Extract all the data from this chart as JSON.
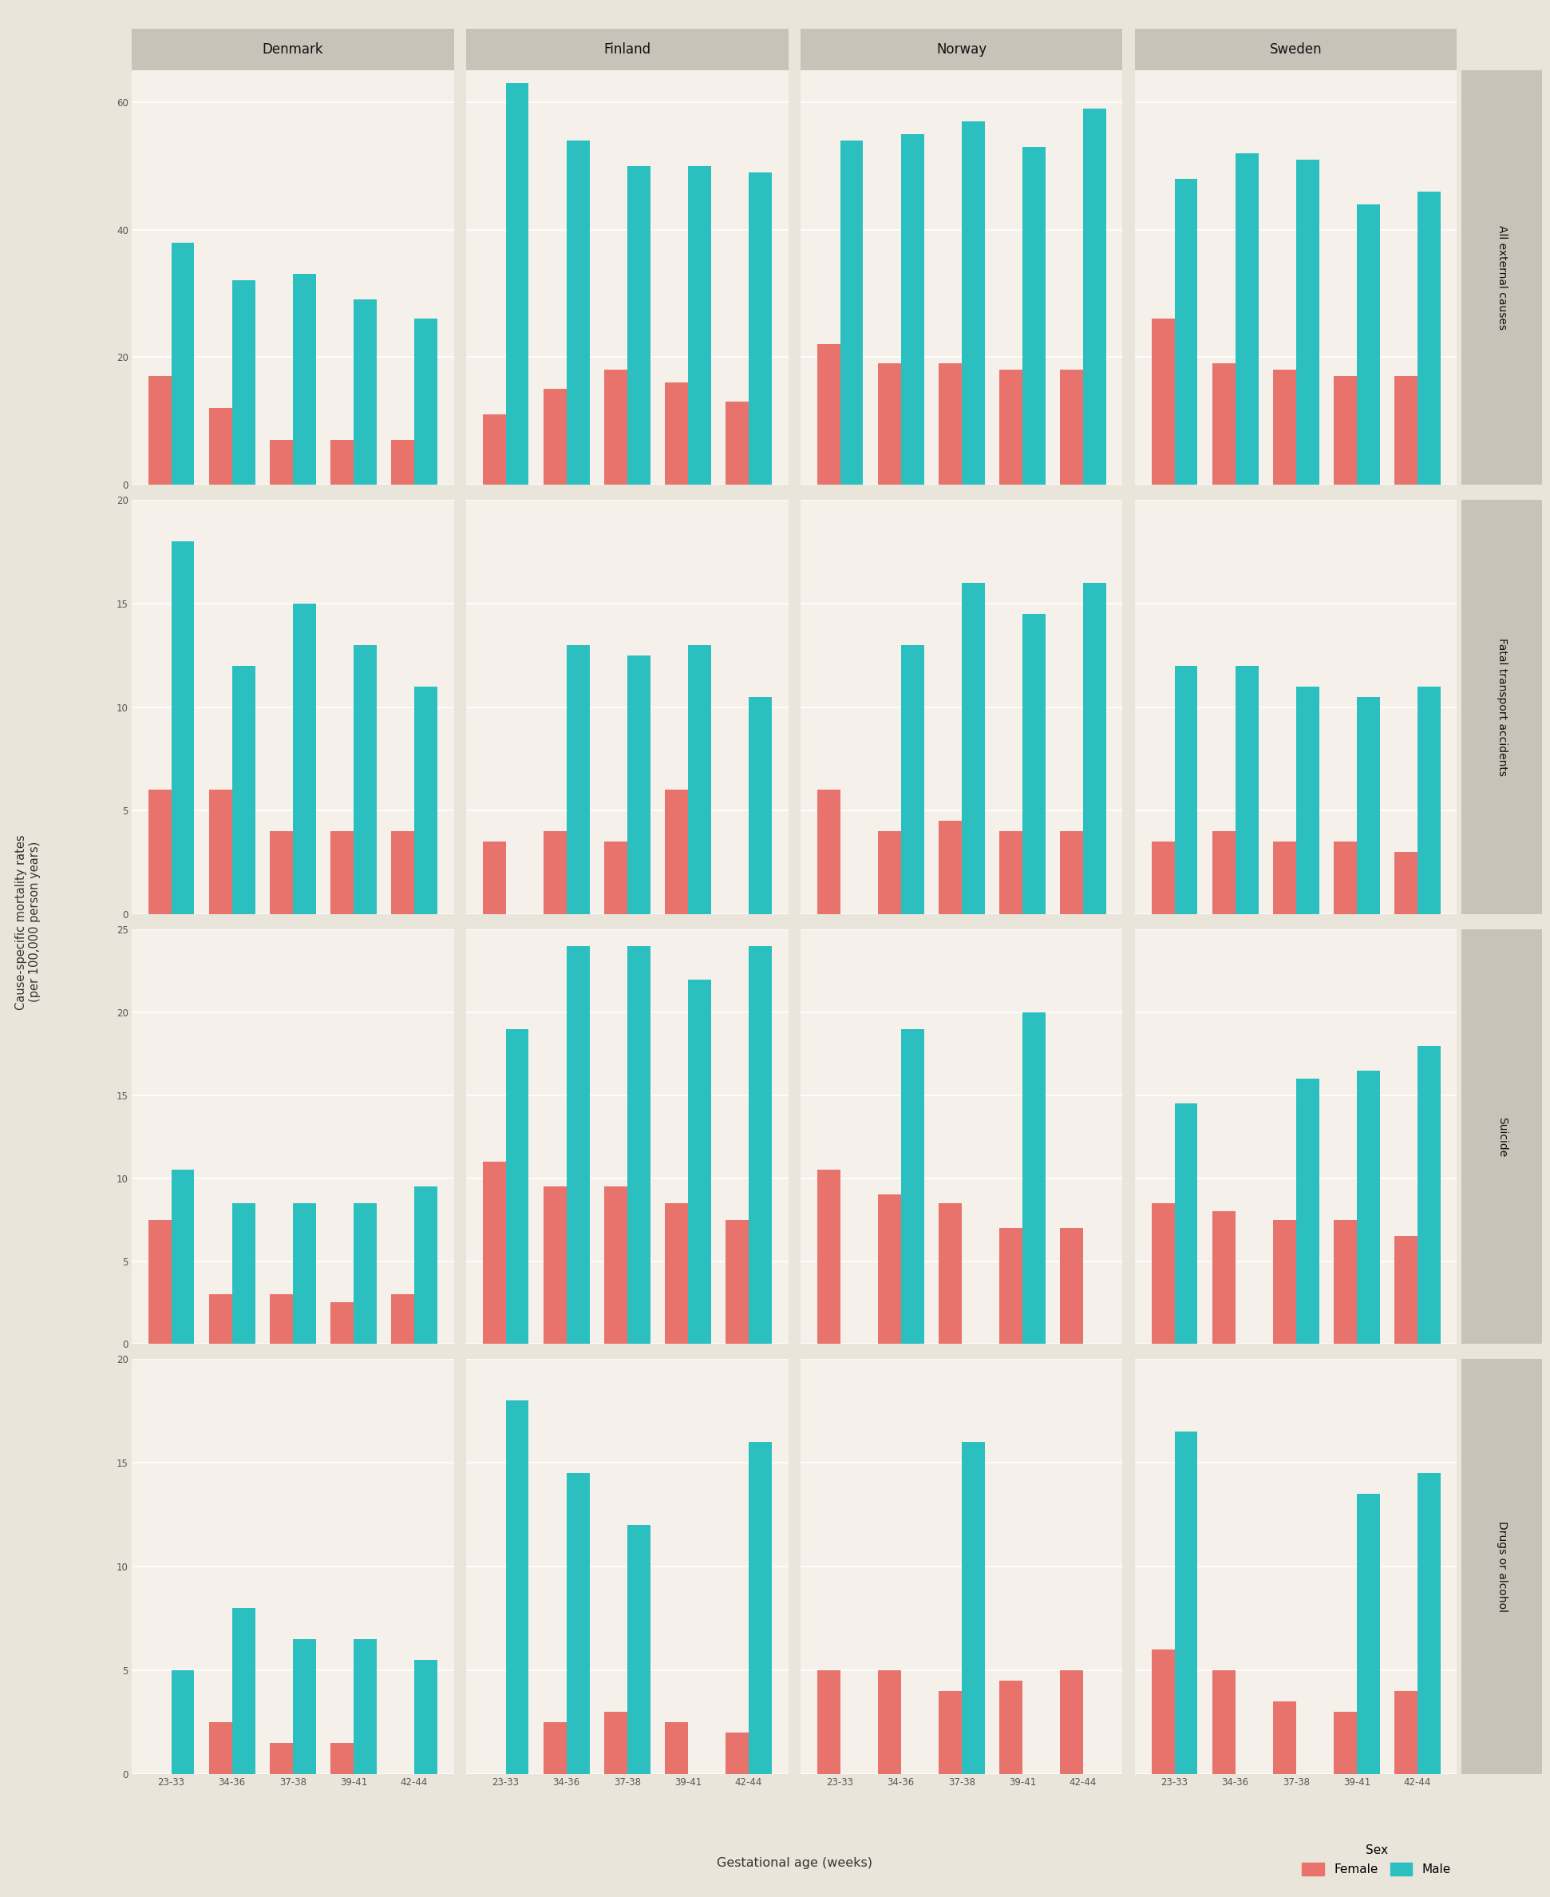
{
  "countries": [
    "Denmark",
    "Finland",
    "Norway",
    "Sweden"
  ],
  "causes": [
    "All external causes",
    "Fatal transport accidents",
    "Suicide",
    "Drugs or alcohol"
  ],
  "gest_ages": [
    "23-33",
    "34-36",
    "37-38",
    "39-41",
    "42-44"
  ],
  "all_data": {
    "All external causes": {
      "Denmark": {
        "female": [
          17,
          12,
          7,
          7,
          7
        ],
        "male": [
          38,
          32,
          33,
          29,
          26
        ]
      },
      "Finland": {
        "female": [
          11,
          15,
          18,
          16,
          13
        ],
        "male": [
          63,
          54,
          50,
          50,
          49
        ]
      },
      "Norway": {
        "female": [
          22,
          19,
          19,
          18,
          18
        ],
        "male": [
          54,
          55,
          57,
          53,
          59
        ]
      },
      "Sweden": {
        "female": [
          26,
          19,
          18,
          17,
          17
        ],
        "male": [
          48,
          52,
          51,
          44,
          46
        ]
      }
    },
    "Fatal transport accidents": {
      "Denmark": {
        "female": [
          6,
          6,
          4,
          4,
          4
        ],
        "male": [
          18,
          12,
          15,
          13,
          11
        ]
      },
      "Finland": {
        "female": [
          3.5,
          4,
          3.5,
          6,
          0
        ],
        "male": [
          0,
          13,
          12.5,
          13,
          10.5
        ]
      },
      "Norway": {
        "female": [
          6,
          4,
          4.5,
          4,
          4
        ],
        "male": [
          0,
          13,
          16,
          14.5,
          16
        ]
      },
      "Sweden": {
        "female": [
          3.5,
          4,
          3.5,
          3.5,
          3
        ],
        "male": [
          12,
          12,
          11,
          10.5,
          11
        ]
      }
    },
    "Suicide": {
      "Denmark": {
        "female": [
          7.5,
          3,
          3,
          2.5,
          3
        ],
        "male": [
          10.5,
          8.5,
          8.5,
          8.5,
          9.5
        ]
      },
      "Finland": {
        "female": [
          11,
          9.5,
          9.5,
          8.5,
          7.5
        ],
        "male": [
          19,
          24,
          24,
          22,
          24
        ]
      },
      "Norway": {
        "female": [
          10.5,
          9,
          8.5,
          7,
          7
        ],
        "male": [
          0,
          19,
          0,
          20,
          0
        ]
      },
      "Sweden": {
        "female": [
          8.5,
          8,
          7.5,
          7.5,
          6.5
        ],
        "male": [
          14.5,
          0,
          16,
          16.5,
          18
        ]
      }
    },
    "Drugs or alcohol": {
      "Denmark": {
        "female": [
          0,
          2.5,
          1.5,
          1.5,
          0
        ],
        "male": [
          5,
          8,
          6.5,
          6.5,
          5.5
        ]
      },
      "Finland": {
        "female": [
          0,
          2.5,
          3,
          2.5,
          2
        ],
        "male": [
          18,
          14.5,
          12,
          0,
          16
        ]
      },
      "Norway": {
        "female": [
          5,
          5,
          4,
          4.5,
          5
        ],
        "male": [
          0,
          0,
          16,
          0,
          0
        ]
      },
      "Sweden": {
        "female": [
          6,
          5,
          3.5,
          3,
          4
        ],
        "male": [
          16.5,
          0,
          0,
          13.5,
          14.5
        ]
      }
    }
  },
  "ylims": {
    "All external causes": [
      0,
      65
    ],
    "Fatal transport accidents": [
      0,
      20
    ],
    "Suicide": [
      0,
      25
    ],
    "Drugs or alcohol": [
      0,
      20
    ]
  },
  "yticks": {
    "All external causes": [
      0,
      20,
      40,
      60
    ],
    "Fatal transport accidents": [
      0,
      5,
      10,
      15,
      20
    ],
    "Suicide": [
      0,
      5,
      10,
      15,
      20,
      25
    ],
    "Drugs or alcohol": [
      0,
      5,
      10,
      15,
      20
    ]
  },
  "female_color": "#E8736C",
  "male_color": "#2BBFBF",
  "bg_color": "#EAE5DA",
  "panel_bg": "#F5F1EA",
  "strip_bg": "#C8C2B8",
  "bar_width": 0.38
}
